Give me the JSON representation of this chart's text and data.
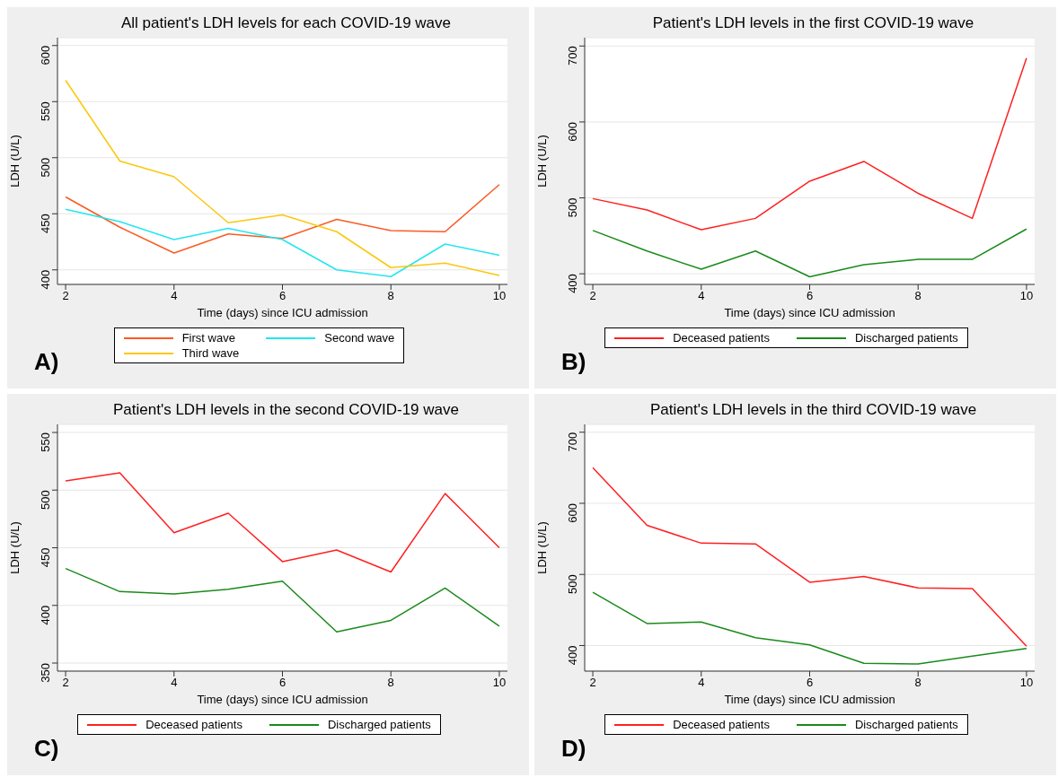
{
  "chart_data": [
    {
      "type": "line",
      "title": "All patient's LDH levels for each COVID-19 wave",
      "xlabel": "Time (days) since ICU admission",
      "ylabel": "LDH (U/L)",
      "annotations": [
        "A)"
      ],
      "x": [
        2,
        3,
        4,
        5,
        6,
        7,
        8,
        9,
        10
      ],
      "xlim": [
        1.85,
        10.15
      ],
      "xticks": [
        2,
        4,
        6,
        8,
        10
      ],
      "ylim": [
        387,
        607
      ],
      "yticks": [
        400,
        450,
        500,
        550,
        600
      ],
      "grid": "y",
      "legend": "bottom",
      "series": [
        {
          "name": "First wave",
          "color": "#fb5a22",
          "values": [
            465,
            438,
            415,
            432,
            428,
            445,
            435,
            434,
            476
          ]
        },
        {
          "name": "Second wave",
          "color": "#22e6f0",
          "values": [
            454,
            443,
            427,
            437,
            427,
            400,
            394,
            423,
            413
          ]
        },
        {
          "name": "Third wave",
          "color": "#fcc70c",
          "values": [
            569,
            497,
            483,
            442,
            449,
            434,
            402,
            406,
            395
          ]
        }
      ]
    },
    {
      "type": "line",
      "title": "Patient's LDH levels in the first COVID-19 wave",
      "xlabel": "Time (days) since ICU admission",
      "ylabel": "LDH (U/L)",
      "annotations": [
        "B)"
      ],
      "x": [
        2,
        3,
        4,
        5,
        6,
        7,
        8,
        9,
        10
      ],
      "xlim": [
        1.85,
        10.15
      ],
      "xticks": [
        2,
        4,
        6,
        8,
        10
      ],
      "ylim": [
        386,
        711
      ],
      "yticks": [
        400,
        500,
        600,
        700
      ],
      "grid": "y",
      "legend": "bottom",
      "series": [
        {
          "name": "Deceased patients",
          "color": "#ff2020",
          "values": [
            499,
            484,
            458,
            473,
            522,
            548,
            506,
            473,
            684
          ]
        },
        {
          "name": "Discharged patients",
          "color": "#1a8a1a",
          "values": [
            457,
            430,
            406,
            430,
            396,
            412,
            419,
            419,
            459
          ]
        }
      ]
    },
    {
      "type": "line",
      "title": "Patient's LDH levels in the second COVID-19 wave",
      "xlabel": "Time (days) since ICU admission",
      "ylabel": "LDH (U/L)",
      "annotations": [
        "C)"
      ],
      "x": [
        2,
        3,
        4,
        5,
        6,
        7,
        8,
        9,
        10
      ],
      "xlim": [
        1.85,
        10.15
      ],
      "xticks": [
        2,
        4,
        6,
        8,
        10
      ],
      "ylim": [
        343,
        557
      ],
      "yticks": [
        350,
        400,
        450,
        500,
        550
      ],
      "grid": "y",
      "legend": "bottom",
      "series": [
        {
          "name": "Deceased patients",
          "color": "#ff2020",
          "values": [
            508,
            515,
            463,
            480,
            438,
            448,
            429,
            497,
            450
          ]
        },
        {
          "name": "Discharged patients",
          "color": "#1a8a1a",
          "values": [
            432,
            412,
            410,
            414,
            421,
            377,
            387,
            415,
            382
          ]
        }
      ]
    },
    {
      "type": "line",
      "title": "Patient's LDH levels in the third COVID-19 wave",
      "xlabel": "Time (days) since ICU admission",
      "ylabel": "LDH (U/L)",
      "annotations": [
        "D)"
      ],
      "x": [
        2,
        3,
        4,
        5,
        6,
        7,
        8,
        9,
        10
      ],
      "xlim": [
        1.85,
        10.15
      ],
      "xticks": [
        2,
        4,
        6,
        8,
        10
      ],
      "ylim": [
        364,
        711
      ],
      "yticks": [
        400,
        500,
        600,
        700
      ],
      "grid": "y",
      "legend": "bottom",
      "series": [
        {
          "name": "Deceased patients",
          "color": "#ff2020",
          "values": [
            650,
            569,
            544,
            543,
            489,
            497,
            481,
            480,
            399
          ]
        },
        {
          "name": "Discharged patients",
          "color": "#1a8a1a",
          "values": [
            475,
            431,
            433,
            411,
            401,
            375,
            374,
            385,
            396
          ]
        }
      ]
    }
  ]
}
